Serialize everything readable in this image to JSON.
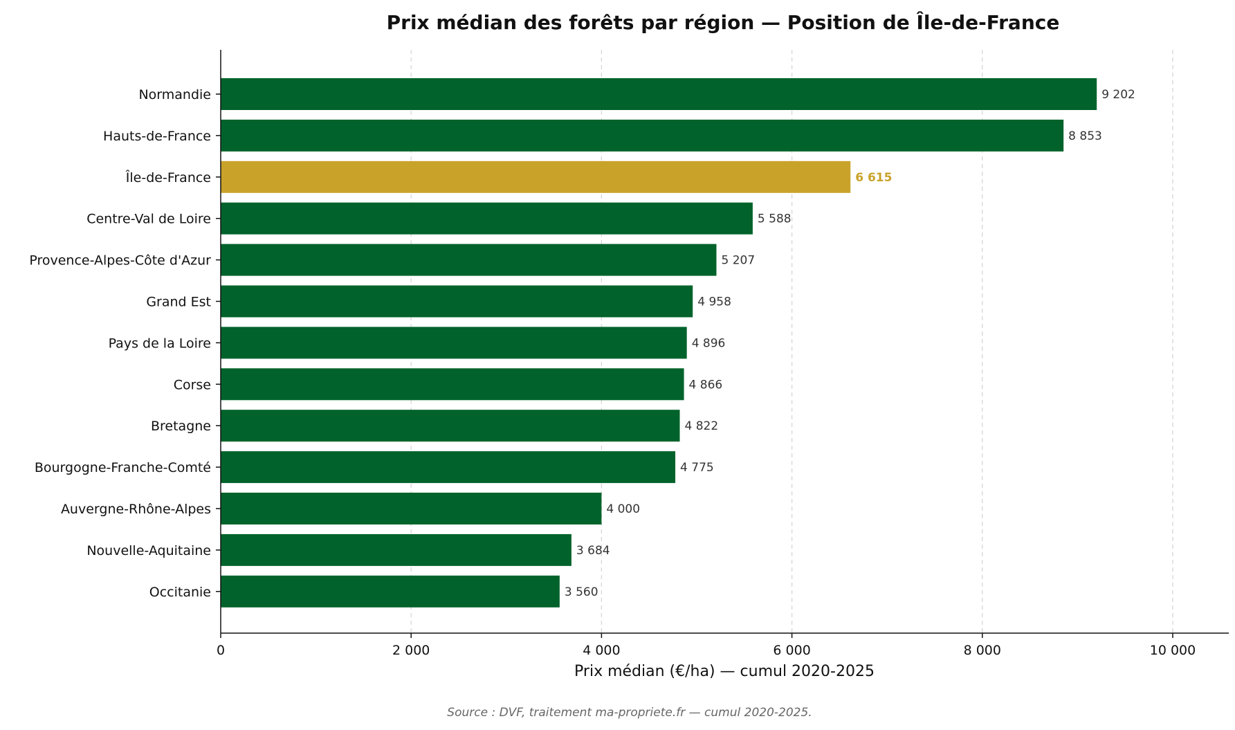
{
  "chart_data": {
    "type": "bar",
    "orientation": "horizontal",
    "title": "Prix médian des forêts par région — Position de Île-de-France",
    "xlabel": "Prix médian (€/ha) — cumul 2020-2025",
    "ylabel": "",
    "xlim": [
      0,
      10600
    ],
    "xticks": [
      0,
      2000,
      4000,
      6000,
      8000,
      10000
    ],
    "xtick_labels": [
      "0",
      "2 000",
      "4 000",
      "6 000",
      "8 000",
      "10 000"
    ],
    "grid": "vertical dashed",
    "categories": [
      "Normandie",
      "Hauts-de-France",
      "Île-de-France",
      "Centre-Val de Loire",
      "Provence-Alpes-Côte d'Azur",
      "Grand Est",
      "Pays de la Loire",
      "Corse",
      "Bretagne",
      "Bourgogne-Franche-Comté",
      "Auvergne-Rhône-Alpes",
      "Nouvelle-Aquitaine",
      "Occitanie"
    ],
    "values": [
      9202,
      8853,
      6615,
      5588,
      5207,
      4958,
      4896,
      4866,
      4822,
      4775,
      4000,
      3684,
      3560
    ],
    "value_labels": [
      "9 202",
      "8 853",
      "6 615",
      "5 588",
      "5 207",
      "4 958",
      "4 896",
      "4 866",
      "4 822",
      "4 775",
      "4 000",
      "3 684",
      "3 560"
    ],
    "highlight": "Île-de-France",
    "colors": {
      "default": "#01632b",
      "highlight": "#c9a22a"
    },
    "source": "Source : DVF, traitement ma-propriete.fr — cumul 2020-2025."
  }
}
